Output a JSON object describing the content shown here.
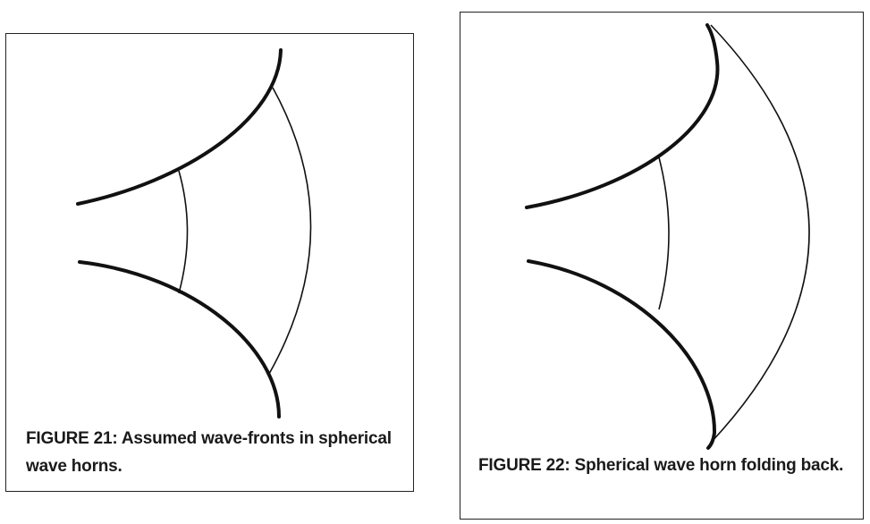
{
  "figures": [
    {
      "caption": "FIGURE 21: Assumed wave-fronts in spherical wave horns."
    },
    {
      "caption": "FIGURE 22: Spherical wave horn folding back."
    }
  ],
  "colors": {
    "line": "#111111",
    "border": "#222222",
    "caption_text": "#1a1a1a",
    "background": "#ffffff"
  }
}
